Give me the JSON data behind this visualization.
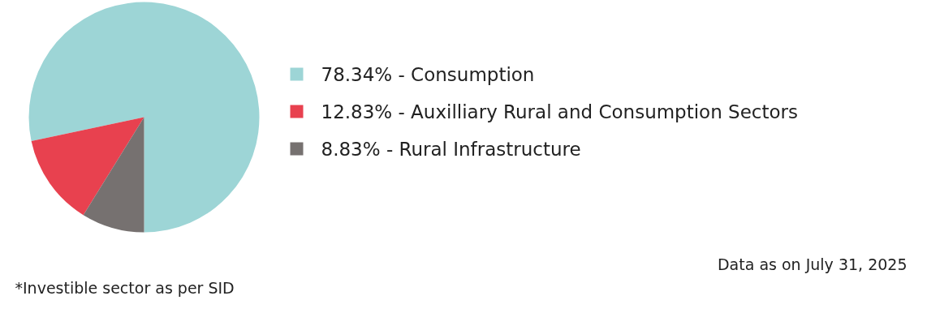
{
  "chart_data": {
    "type": "pie",
    "categories": [
      "78.34% - Consumption",
      "12.83% - Auxilliary Rural and Consumption Sectors",
      "8.83% - Rural Infrastructure"
    ],
    "values": [
      78.34,
      12.83,
      8.83
    ],
    "colors": [
      "#9dd5d6",
      "#e8414f",
      "#767170"
    ],
    "legend": "right",
    "annotations": [
      "Data as on July 31, 2025",
      "*Investible sector as per SID"
    ]
  }
}
